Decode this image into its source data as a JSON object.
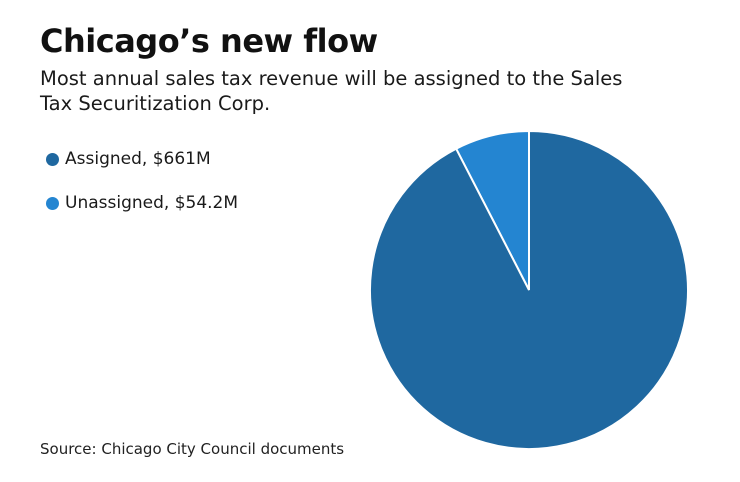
{
  "header": {
    "title": "Chicago’s new flow",
    "subtitle": "Most annual sales tax revenue will be assigned to the Sales Tax Securitization Corp."
  },
  "legend": [
    {
      "label": "Assigned, $661M",
      "color": "#1f68a0"
    },
    {
      "label": "Unassigned, $54.2M",
      "color": "#2485d1"
    }
  ],
  "footer": {
    "source": "Source: Chicago City Council documents"
  },
  "chart_data": {
    "type": "pie",
    "title": "Chicago’s new flow",
    "subtitle": "Most annual sales tax revenue will be assigned to the Sales Tax Securitization Corp.",
    "categories": [
      "Assigned",
      "Unassigned"
    ],
    "values": [
      661,
      54.2
    ],
    "units": "$M",
    "colors": [
      "#1f68a0",
      "#2485d1"
    ],
    "legend_position": "left",
    "start_angle": "12 o'clock, Unassigned drawn counterclockwise",
    "source": "Source: Chicago City Council documents"
  }
}
